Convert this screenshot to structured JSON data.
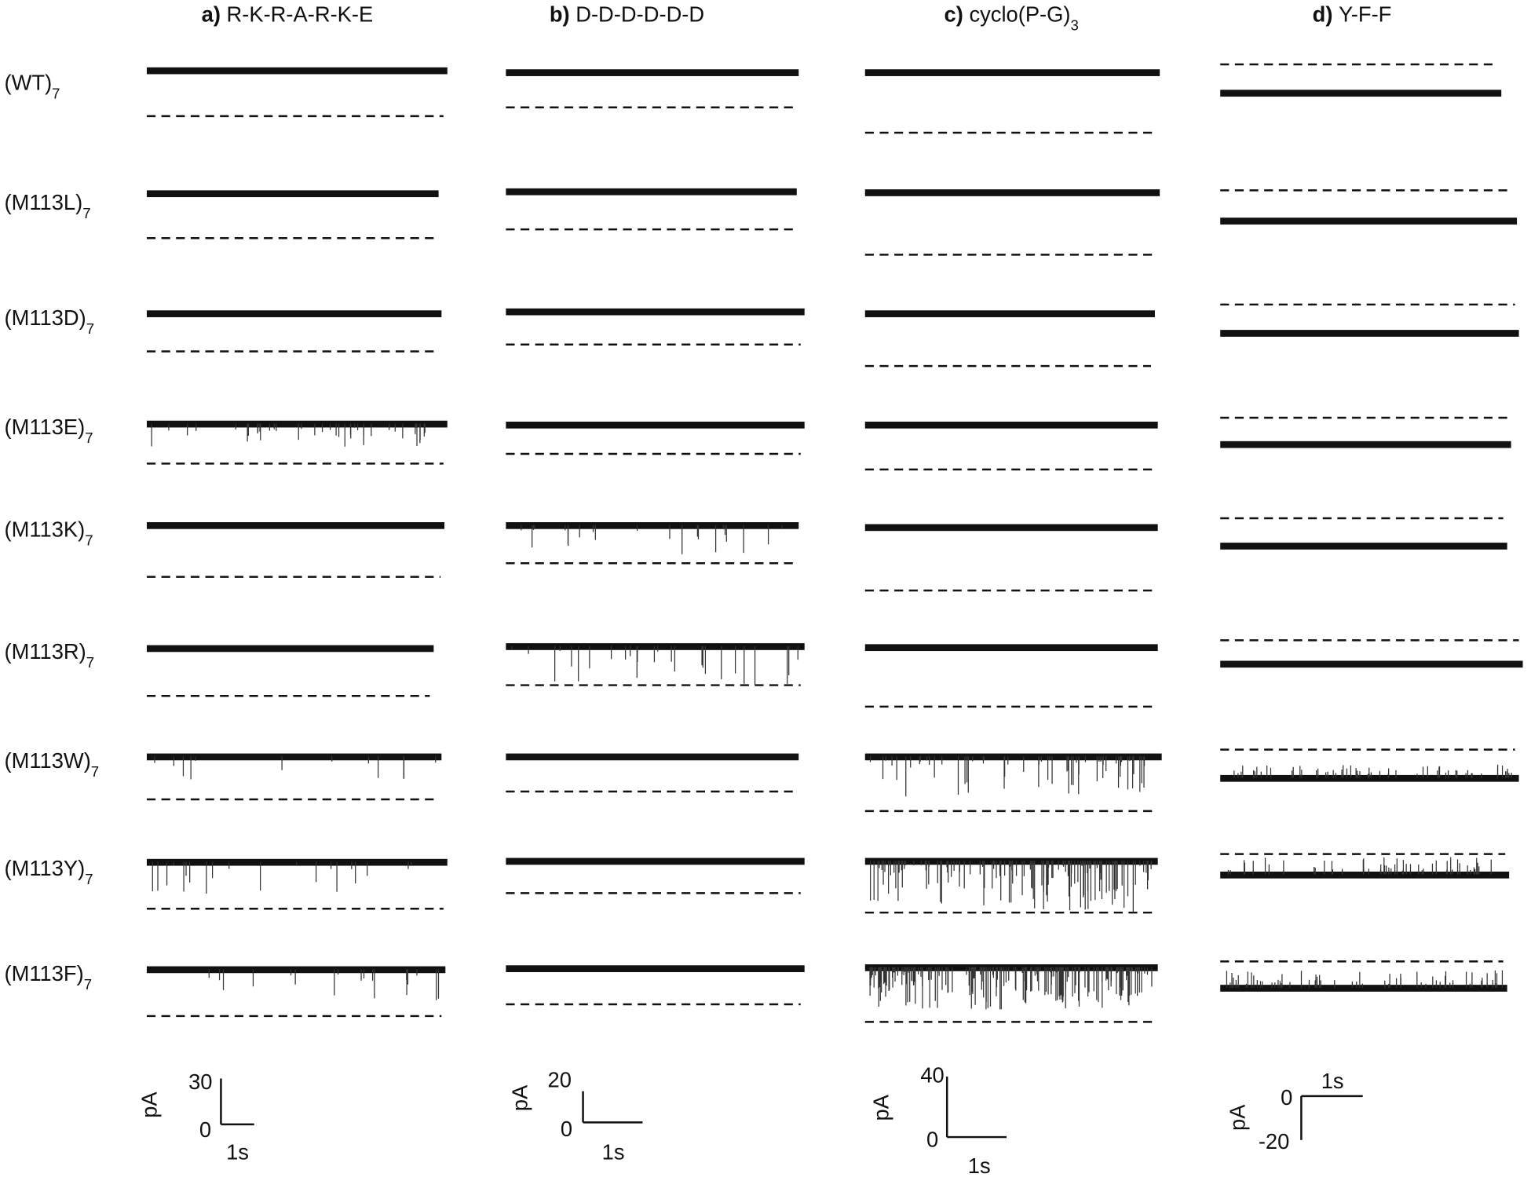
{
  "columns": [
    {
      "letter": "a)",
      "name": "R-K-R-A-R-K-E",
      "scale": {
        "unit": "pA",
        "top": "30",
        "bottom": "0",
        "time": "1s"
      }
    },
    {
      "letter": "b)",
      "name": "D-D-D-D-D-D",
      "scale": {
        "unit": "pA",
        "top": "20",
        "bottom": "0",
        "time": "1s"
      }
    },
    {
      "letter": "c)",
      "name": "cyclo(P-G)",
      "subscript": "3",
      "scale": {
        "unit": "pA",
        "top": "40",
        "bottom": "0",
        "time": "1s"
      }
    },
    {
      "letter": "d)",
      "name": "Y-F-F",
      "scale": {
        "unit": "pA",
        "top": "0",
        "bottom": "-20",
        "time": "1s"
      }
    }
  ],
  "rows": [
    {
      "name": "(WT)",
      "subscript": "7"
    },
    {
      "name": "(M113L)",
      "subscript": "7"
    },
    {
      "name": "(M113D)",
      "subscript": "7"
    },
    {
      "name": "(M113E)",
      "subscript": "7"
    },
    {
      "name": "(M113K)",
      "subscript": "7"
    },
    {
      "name": "(M113R)",
      "subscript": "7"
    },
    {
      "name": "(M113W)",
      "subscript": "7"
    },
    {
      "name": "(M113Y)",
      "subscript": "7"
    },
    {
      "name": "(M113F)",
      "subscript": "7"
    }
  ]
}
